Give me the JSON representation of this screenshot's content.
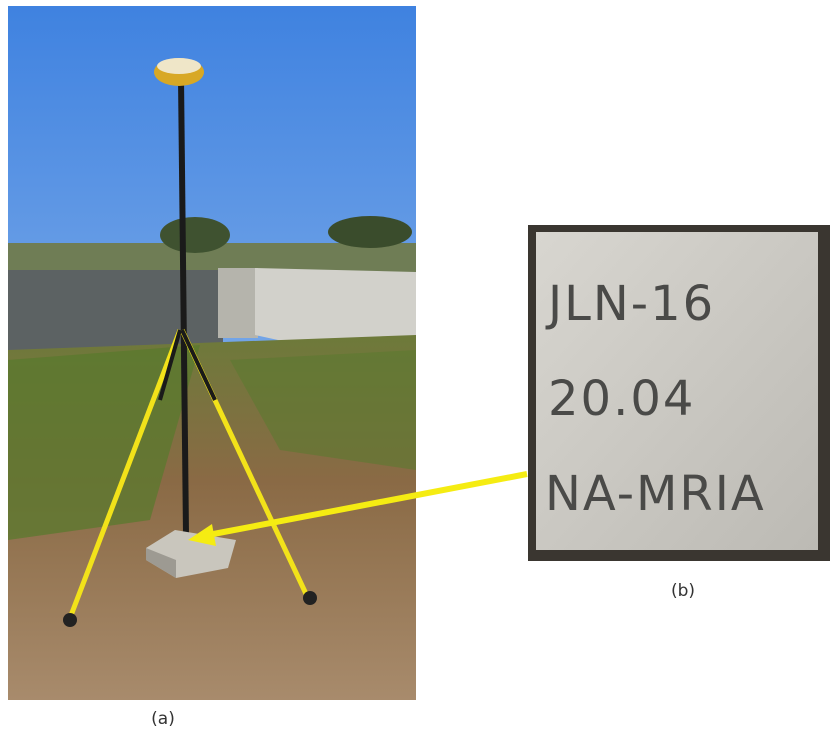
{
  "figure": {
    "panel_a_label": "(a)",
    "panel_b_label": "(b)",
    "marker_lines": [
      "JLN-16",
      "20.04",
      "NA-MRIA"
    ]
  }
}
